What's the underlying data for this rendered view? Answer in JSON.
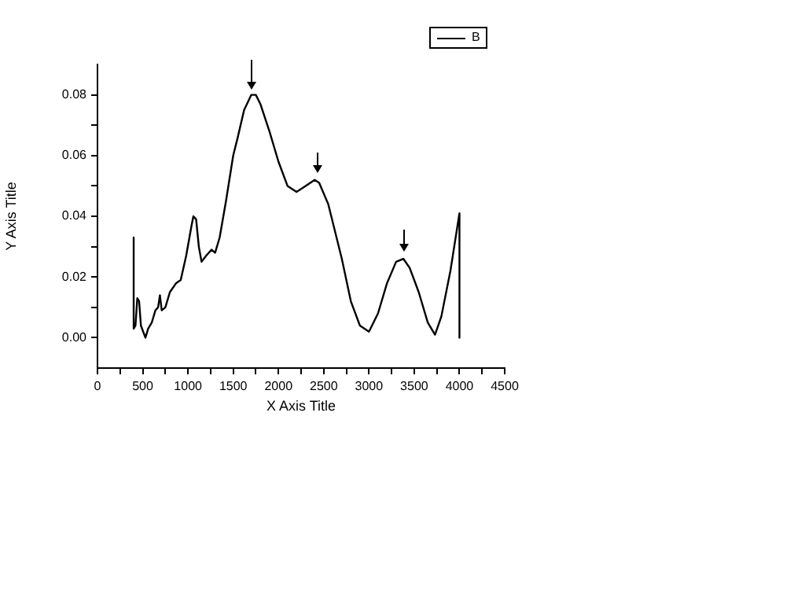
{
  "chart_data": {
    "type": "line",
    "xlabel": "X Axis Title",
    "ylabel": "Y Axis Title",
    "series": [
      {
        "name": "B",
        "color": "#000000",
        "x": [
          400,
          400,
          420,
          440,
          460,
          480,
          530,
          560,
          600,
          640,
          670,
          690,
          710,
          750,
          800,
          870,
          920,
          980,
          1040,
          1060,
          1090,
          1120,
          1150,
          1200,
          1260,
          1300,
          1350,
          1420,
          1500,
          1550,
          1620,
          1700,
          1750,
          1800,
          1900,
          2000,
          2100,
          2200,
          2300,
          2400,
          2450,
          2550,
          2700,
          2800,
          2900,
          3000,
          3100,
          3200,
          3300,
          3380,
          3450,
          3550,
          3650,
          3730,
          3800,
          3900,
          4000,
          4000
        ],
        "values": [
          0.033,
          0.003,
          0.004,
          0.013,
          0.012,
          0.004,
          0.0,
          0.003,
          0.005,
          0.009,
          0.01,
          0.014,
          0.009,
          0.01,
          0.015,
          0.018,
          0.019,
          0.027,
          0.037,
          0.04,
          0.039,
          0.03,
          0.025,
          0.027,
          0.029,
          0.028,
          0.033,
          0.045,
          0.06,
          0.066,
          0.075,
          0.08,
          0.08,
          0.077,
          0.068,
          0.058,
          0.05,
          0.048,
          0.05,
          0.052,
          0.051,
          0.044,
          0.026,
          0.012,
          0.004,
          0.002,
          0.008,
          0.018,
          0.025,
          0.026,
          0.023,
          0.015,
          0.005,
          0.001,
          0.007,
          0.022,
          0.041,
          0.0
        ]
      }
    ],
    "xlim": [
      0,
      4500
    ],
    "xticks": [
      0,
      {
        "value": 250,
        "label": null
      },
      500,
      {
        "value": 750,
        "label": null
      },
      1000,
      {
        "value": 1250,
        "label": null
      },
      1500,
      {
        "value": 1750,
        "label": null
      },
      2000,
      {
        "value": 2250,
        "label": null
      },
      2500,
      {
        "value": 2750,
        "label": null
      },
      3000,
      {
        "value": 3250,
        "label": null
      },
      3500,
      {
        "value": 3750,
        "label": null
      },
      4000,
      {
        "value": 4250,
        "label": null
      },
      4500
    ],
    "ylim": [
      -0.01,
      0.09
    ],
    "yticks": [
      {
        "value": 0,
        "label": "0.00"
      },
      {
        "value": 0.01,
        "label": null
      },
      {
        "value": 0.02,
        "label": "0.02"
      },
      {
        "value": 0.03,
        "label": null
      },
      {
        "value": 0.04,
        "label": "0.04"
      },
      {
        "value": 0.05,
        "label": null
      },
      {
        "value": 0.06,
        "label": "0.06"
      },
      {
        "value": 0.07,
        "label": null
      },
      {
        "value": 0.08,
        "label": "0.08"
      }
    ],
    "grid": false,
    "legend": "top right",
    "marker": "none",
    "line_style": "solid"
  }
}
